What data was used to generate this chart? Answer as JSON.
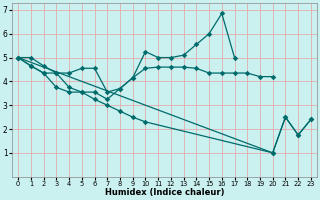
{
  "background_color": "#caf0f0",
  "grid_color": "#e8a0a0",
  "line_color": "#006b6b",
  "xlabel": "Humidex (Indice chaleur)",
  "xlim": [
    -0.5,
    23.5
  ],
  "ylim": [
    0,
    7.3
  ],
  "xtick_vals": [
    0,
    1,
    2,
    3,
    4,
    5,
    6,
    7,
    8,
    9,
    10,
    11,
    12,
    13,
    14,
    15,
    16,
    17,
    18,
    19,
    20,
    21,
    22,
    23
  ],
  "ytick_vals": [
    1,
    2,
    3,
    4,
    5,
    6,
    7
  ],
  "s1x": [
    0,
    1,
    2,
    3,
    4,
    5,
    6,
    7,
    8,
    9,
    10,
    11,
    12,
    13,
    14,
    15,
    16,
    17,
    18,
    19,
    20
  ],
  "s1y": [
    5.0,
    5.0,
    4.65,
    4.35,
    4.35,
    4.55,
    4.55,
    3.55,
    3.7,
    4.15,
    4.55,
    4.6,
    4.6,
    4.6,
    4.55,
    4.35,
    4.35,
    4.35,
    4.35,
    4.2,
    4.2
  ],
  "s2x": [
    0,
    1,
    2,
    3,
    4,
    5,
    6,
    7,
    8,
    9,
    10,
    11,
    12,
    13,
    14,
    15,
    16,
    17
  ],
  "s2y": [
    5.0,
    4.65,
    4.35,
    4.35,
    3.75,
    3.55,
    3.55,
    3.25,
    3.7,
    4.15,
    5.25,
    5.0,
    5.0,
    5.1,
    5.55,
    6.0,
    6.85,
    5.0
  ],
  "s3x": [
    0,
    20,
    21,
    22,
    23
  ],
  "s3y": [
    5.0,
    1.0,
    2.5,
    1.75,
    2.4
  ],
  "s4x": [
    0,
    1,
    2,
    3,
    4,
    5,
    6,
    7,
    8,
    9,
    10,
    20,
    21,
    22,
    23
  ],
  "s4y": [
    5.0,
    4.65,
    4.35,
    3.75,
    3.55,
    3.55,
    3.25,
    3.0,
    2.75,
    2.5,
    2.3,
    1.0,
    2.5,
    1.75,
    2.4
  ]
}
